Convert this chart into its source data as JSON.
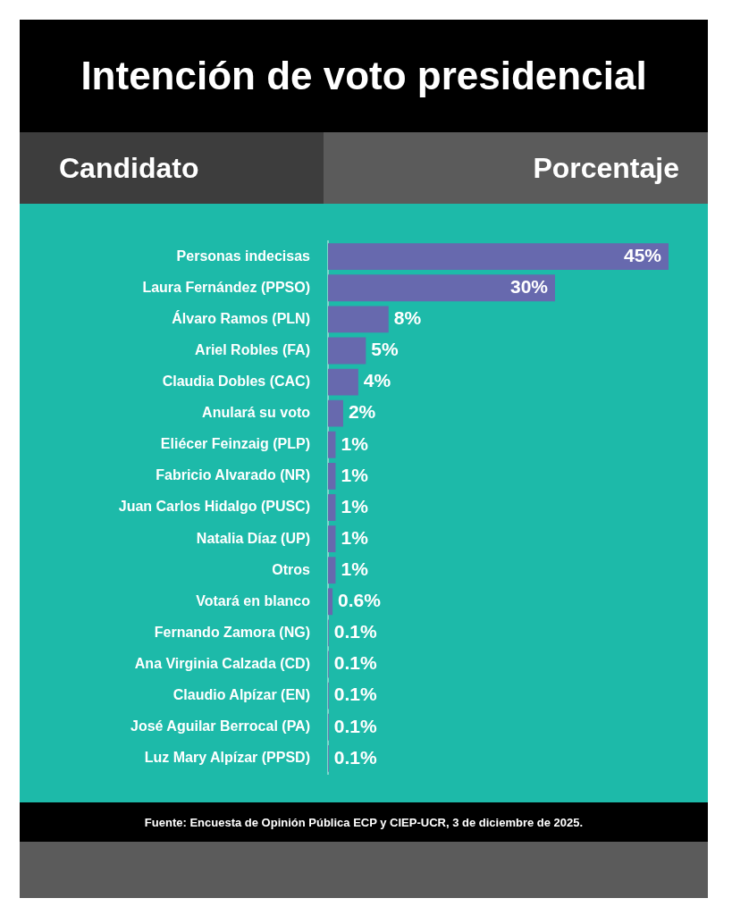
{
  "chart_data": {
    "type": "bar",
    "orientation": "horizontal",
    "title": "Intención de voto presidencial",
    "ylabel": "Candidato",
    "xlabel": "Porcentaje",
    "categories": [
      "Personas indecisas",
      "Laura Fernández (PPSO)",
      "Álvaro Ramos (PLN)",
      "Ariel Robles (FA)",
      "Claudia Dobles (CAC)",
      "Anulará su voto",
      "Eliécer Feinzaig (PLP)",
      "Fabricio Alvarado (NR)",
      "Juan Carlos Hidalgo (PUSC)",
      "Natalia Díaz (UP)",
      "Otros",
      "Votará en blanco",
      "Fernando Zamora (NG)",
      "Ana Virginia Calzada (CD)",
      "Claudio Alpízar (EN)",
      "José Aguilar Berrocal (PA)",
      "Luz Mary Alpízar (PPSD)"
    ],
    "values": [
      45,
      30,
      8,
      5,
      4,
      2,
      1,
      1,
      1,
      1,
      1,
      0.6,
      0.1,
      0.1,
      0.1,
      0.1,
      0.1
    ],
    "value_labels": [
      "45%",
      "30%",
      "8%",
      "5%",
      "4%",
      "2%",
      "1%",
      "1%",
      "1%",
      "1%",
      "1%",
      "0.6%",
      "0.1%",
      "0.1%",
      "0.1%",
      "0.1%",
      "0.1%"
    ],
    "color": "#6769ae",
    "grid": false,
    "legend": false,
    "annotations": [
      "Fuente: Encuesta de Opinión Pública ECP y CIEP-UCR, 3 de diciembre de 2025."
    ]
  }
}
